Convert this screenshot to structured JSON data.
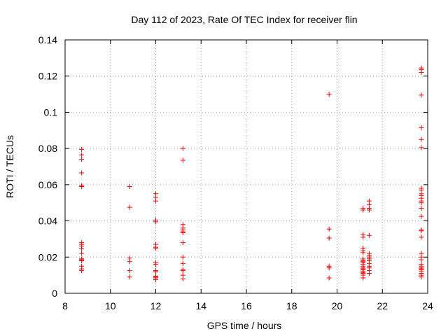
{
  "chart_data": {
    "type": "scatter",
    "title": "Day 112 of 2023, Rate Of TEC Index for receiver flin",
    "xlabel": "GPS time / hours",
    "ylabel": "ROTI / TECUs",
    "xlim": [
      8,
      24
    ],
    "ylim": [
      0,
      0.14
    ],
    "xticks": [
      "8",
      "10",
      "12",
      "14",
      "16",
      "18",
      "20",
      "22",
      "24"
    ],
    "yticks": [
      "0",
      "0.02",
      "0.04",
      "0.06",
      "0.08",
      "0.1",
      "0.12",
      "0.14"
    ],
    "grid": true,
    "marker": "plus",
    "color": "#ff0000",
    "points": [
      [
        8.73,
        0.0795
      ],
      [
        8.73,
        0.0765
      ],
      [
        8.73,
        0.074
      ],
      [
        8.73,
        0.0665
      ],
      [
        8.73,
        0.0595
      ],
      [
        8.73,
        0.059
      ],
      [
        8.73,
        0.028
      ],
      [
        8.73,
        0.027
      ],
      [
        8.73,
        0.026
      ],
      [
        8.73,
        0.0245
      ],
      [
        8.73,
        0.022
      ],
      [
        8.73,
        0.019
      ],
      [
        8.73,
        0.0185
      ],
      [
        8.73,
        0.018
      ],
      [
        8.73,
        0.015
      ],
      [
        8.73,
        0.0135
      ],
      [
        8.73,
        0.0125
      ],
      [
        10.85,
        0.059
      ],
      [
        10.85,
        0.0475
      ],
      [
        10.85,
        0.0195
      ],
      [
        10.85,
        0.0175
      ],
      [
        10.85,
        0.0125
      ],
      [
        10.85,
        0.009
      ],
      [
        12.0,
        0.055
      ],
      [
        12.0,
        0.053
      ],
      [
        12.0,
        0.051
      ],
      [
        12.0,
        0.0405
      ],
      [
        12.0,
        0.0395
      ],
      [
        12.0,
        0.027
      ],
      [
        12.0,
        0.0255
      ],
      [
        12.0,
        0.025
      ],
      [
        12.0,
        0.017
      ],
      [
        12.0,
        0.016
      ],
      [
        12.0,
        0.0125
      ],
      [
        12.0,
        0.012
      ],
      [
        12.0,
        0.0095
      ],
      [
        12.0,
        0.009
      ],
      [
        12.0,
        0.0085
      ],
      [
        12.0,
        0.0075
      ],
      [
        13.2,
        0.08
      ],
      [
        13.2,
        0.0735
      ],
      [
        13.2,
        0.038
      ],
      [
        13.2,
        0.036
      ],
      [
        13.2,
        0.035
      ],
      [
        13.2,
        0.034
      ],
      [
        13.2,
        0.0335
      ],
      [
        13.2,
        0.028
      ],
      [
        13.2,
        0.02
      ],
      [
        13.2,
        0.0165
      ],
      [
        13.2,
        0.013
      ],
      [
        13.2,
        0.0125
      ],
      [
        13.2,
        0.01
      ],
      [
        13.2,
        0.008
      ],
      [
        19.65,
        0.11
      ],
      [
        19.65,
        0.0355
      ],
      [
        19.65,
        0.0305
      ],
      [
        19.65,
        0.015
      ],
      [
        19.65,
        0.014
      ],
      [
        19.65,
        0.0085
      ],
      [
        21.15,
        0.047
      ],
      [
        21.15,
        0.046
      ],
      [
        21.15,
        0.0325
      ],
      [
        21.15,
        0.031
      ],
      [
        21.15,
        0.025
      ],
      [
        21.15,
        0.0235
      ],
      [
        21.15,
        0.0225
      ],
      [
        21.15,
        0.019
      ],
      [
        21.15,
        0.018
      ],
      [
        21.15,
        0.0175
      ],
      [
        21.15,
        0.017
      ],
      [
        21.15,
        0.016
      ],
      [
        21.15,
        0.015
      ],
      [
        21.15,
        0.014
      ],
      [
        21.15,
        0.0135
      ],
      [
        21.15,
        0.013
      ],
      [
        21.15,
        0.012
      ],
      [
        21.15,
        0.0115
      ],
      [
        21.15,
        0.011
      ],
      [
        21.15,
        0.01
      ],
      [
        21.15,
        0.0085
      ],
      [
        21.42,
        0.051
      ],
      [
        21.42,
        0.049
      ],
      [
        21.42,
        0.047
      ],
      [
        21.42,
        0.046
      ],
      [
        21.42,
        0.032
      ],
      [
        21.42,
        0.022
      ],
      [
        21.42,
        0.021
      ],
      [
        21.42,
        0.02
      ],
      [
        21.42,
        0.019
      ],
      [
        21.42,
        0.018
      ],
      [
        21.42,
        0.0165
      ],
      [
        21.42,
        0.015
      ],
      [
        21.42,
        0.014
      ],
      [
        21.42,
        0.0125
      ],
      [
        21.42,
        0.011
      ],
      [
        23.72,
        0.1245
      ],
      [
        23.72,
        0.1235
      ],
      [
        23.72,
        0.122
      ],
      [
        23.72,
        0.1095
      ],
      [
        23.72,
        0.0915
      ],
      [
        23.72,
        0.085
      ],
      [
        23.72,
        0.0805
      ],
      [
        23.72,
        0.058
      ],
      [
        23.72,
        0.057
      ],
      [
        23.72,
        0.055
      ],
      [
        23.72,
        0.054
      ],
      [
        23.72,
        0.0525
      ],
      [
        23.72,
        0.051
      ],
      [
        23.72,
        0.05
      ],
      [
        23.72,
        0.047
      ],
      [
        23.72,
        0.0425
      ],
      [
        23.72,
        0.035
      ],
      [
        23.72,
        0.0345
      ],
      [
        23.72,
        0.031
      ],
      [
        23.72,
        0.022
      ],
      [
        23.72,
        0.02
      ],
      [
        23.72,
        0.0185
      ],
      [
        23.72,
        0.016
      ],
      [
        23.72,
        0.015
      ],
      [
        23.72,
        0.014
      ],
      [
        23.72,
        0.0135
      ],
      [
        23.72,
        0.013
      ],
      [
        23.72,
        0.012
      ],
      [
        23.72,
        0.011
      ],
      [
        23.72,
        0.01
      ],
      [
        23.72,
        0.009
      ]
    ]
  }
}
